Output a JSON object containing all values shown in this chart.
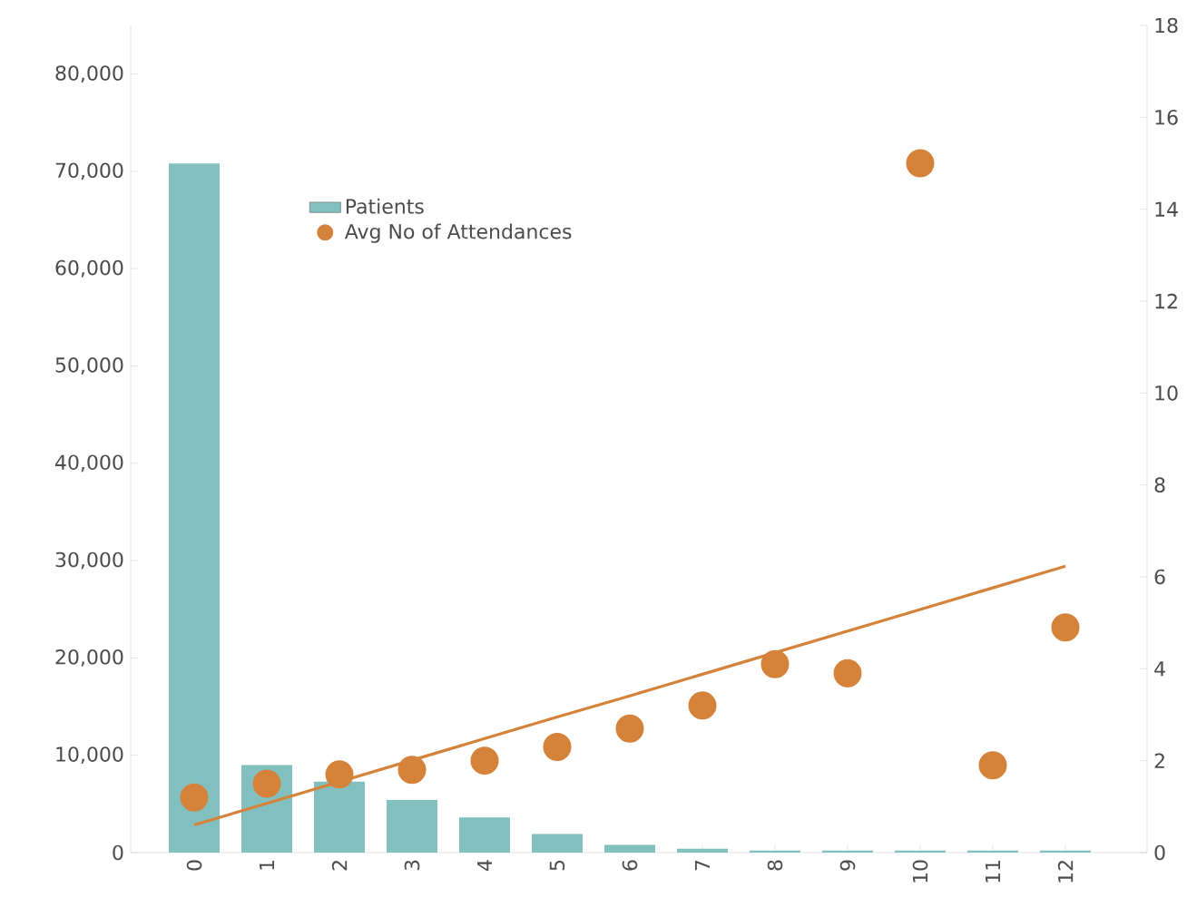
{
  "chart_data": {
    "type": "bar",
    "categories": [
      "0",
      "1",
      "2",
      "3",
      "4",
      "5",
      "6",
      "7",
      "8",
      "9",
      "10",
      "11",
      "12"
    ],
    "series": [
      {
        "name": "Patients",
        "color": "#82c0c0",
        "values": [
          70800,
          9000,
          7300,
          5400,
          3600,
          1900,
          800,
          400,
          200,
          200,
          200,
          200,
          200
        ]
      },
      {
        "name": "Avg No of Attendances",
        "type": "scatter",
        "axis": "y2",
        "color": "#d5823a",
        "values": [
          1.2,
          1.5,
          1.7,
          1.8,
          2.0,
          2.3,
          2.7,
          3.2,
          4.1,
          3.9,
          15.0,
          1.9,
          4.9
        ]
      },
      {
        "type": "line",
        "axis": "y2",
        "color": "#d5823a",
        "line_style": "solid",
        "values": [
          0.6,
          1.07,
          1.54,
          2.01,
          2.48,
          2.95,
          3.41,
          3.88,
          4.35,
          4.82,
          5.29,
          5.76,
          6.23
        ]
      }
    ],
    "ylim": [
      0,
      85000
    ],
    "yticks": [
      {
        "value": 0,
        "label": "0"
      },
      {
        "value": 10000,
        "label": "10,000"
      },
      {
        "value": 20000,
        "label": "20,000"
      },
      {
        "value": 30000,
        "label": "30,000"
      },
      {
        "value": 40000,
        "label": "40,000"
      },
      {
        "value": 50000,
        "label": "50,000"
      },
      {
        "value": 60000,
        "label": "60,000"
      },
      {
        "value": 70000,
        "label": "70,000"
      },
      {
        "value": 80000,
        "label": "80,000"
      }
    ],
    "y2lim": [
      0,
      18
    ],
    "y2ticks": [
      0,
      2,
      4,
      6,
      8,
      10,
      12,
      14,
      16,
      18
    ],
    "grid": false,
    "legend": "top left"
  }
}
